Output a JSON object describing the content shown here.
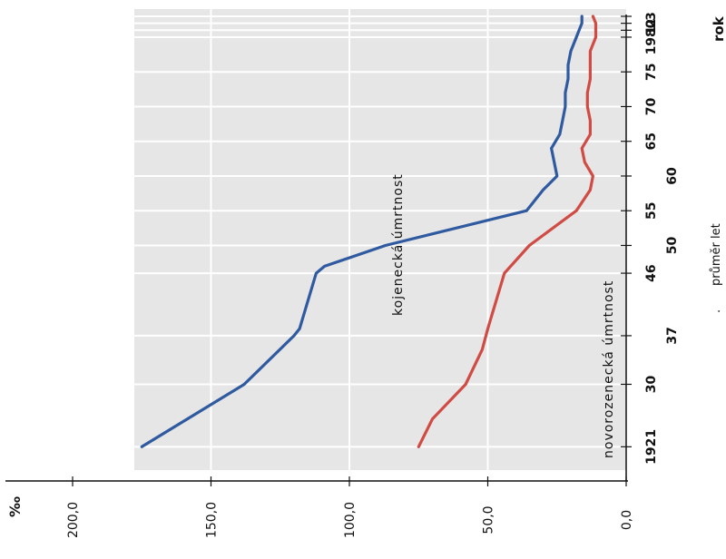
{
  "chart_data": {
    "type": "line",
    "orientation": "rotated-90",
    "x_unit": "rok",
    "y_unit": "‰",
    "x_range": [
      1920,
      1983
    ],
    "y_range": [
      0,
      200
    ],
    "x_ticks": [
      {
        "value": 1921,
        "label": "1921"
      },
      {
        "value": 1930,
        "label": "30"
      },
      {
        "value": 1937,
        "label": "37"
      },
      {
        "value": 1946,
        "label": "46"
      },
      {
        "value": 1950,
        "label": "50"
      },
      {
        "value": 1955,
        "label": "55"
      },
      {
        "value": 1960,
        "label": "60"
      },
      {
        "value": 1965,
        "label": "65"
      },
      {
        "value": 1970,
        "label": "70"
      },
      {
        "value": 1975,
        "label": "75"
      },
      {
        "value": 1980,
        "label": "1980"
      },
      {
        "value": 1981,
        "label": "1"
      },
      {
        "value": 1982,
        "label": "2"
      },
      {
        "value": 1983,
        "label": "3"
      }
    ],
    "y_ticks": [
      {
        "value": 0,
        "label": "0,0"
      },
      {
        "value": 50,
        "label": "50,0"
      },
      {
        "value": 100,
        "label": "100,0"
      },
      {
        "value": 150,
        "label": "150,0"
      },
      {
        "value": 200,
        "label": "200,0"
      }
    ],
    "annotations": {
      "avg_marker": ".",
      "avg_label": "průměr let"
    },
    "series": [
      {
        "name": "kojenecká úmrtnost",
        "color": "#2f5aa0",
        "x": [
          1921,
          1930,
          1937,
          1938,
          1946,
          1947,
          1950,
          1955,
          1958,
          1960,
          1962,
          1964,
          1966,
          1968,
          1970,
          1972,
          1974,
          1976,
          1978,
          1980,
          1981,
          1982,
          1983
        ],
        "y": [
          175,
          138,
          120,
          118,
          112,
          109,
          87,
          36,
          30,
          25,
          26,
          27,
          24,
          23,
          22,
          22,
          21,
          21,
          20,
          18,
          17,
          16,
          16
        ]
      },
      {
        "name": "novorozenecká úmrtnost",
        "color": "#d14b45",
        "x": [
          1921,
          1925,
          1930,
          1935,
          1938,
          1946,
          1950,
          1955,
          1958,
          1960,
          1962,
          1964,
          1966,
          1968,
          1970,
          1972,
          1974,
          1976,
          1978,
          1980,
          1981,
          1982,
          1983
        ],
        "y": [
          75,
          70,
          58,
          52,
          50,
          44,
          35,
          18,
          13,
          12,
          15,
          16,
          13,
          13,
          14,
          14,
          13,
          13,
          13,
          11,
          11,
          11,
          12
        ]
      }
    ]
  }
}
